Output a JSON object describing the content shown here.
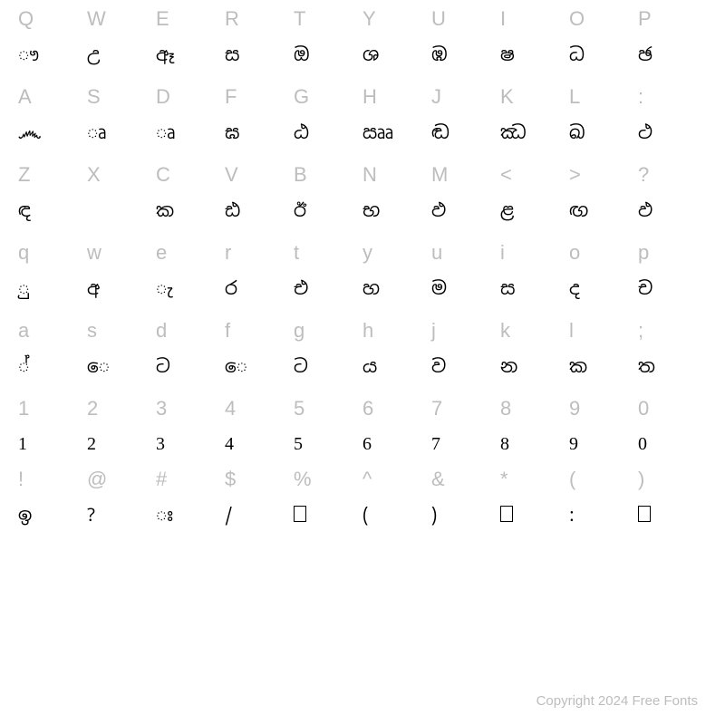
{
  "colors": {
    "key": "#bdbdbd",
    "glyph": "#000000",
    "background": "#ffffff"
  },
  "fonts": {
    "key_size": 22,
    "glyph_size": 20
  },
  "rows": [
    {
      "keys": [
        "Q",
        "W",
        "E",
        "R",
        "T",
        "Y",
        "U",
        "I",
        "O",
        "P"
      ],
      "glyphs": [
        "ෟ",
        "උ",
        "ඈ",
        "ස",
        "ඔ",
        "ශ",
        "ඹ",
        "ෂ",
        "ධ",
        "ඡ"
      ]
    },
    {
      "keys": [
        "A",
        "S",
        "D",
        "F",
        "G",
        "H",
        "J",
        "K",
        "L",
        ":"
      ],
      "glyphs": [
        "෴",
        "ෘ",
        "ෘ",
        "ඝ",
        "ඨ",
        "ඎ",
        "ඬ",
        "ඣ",
        "ඛ",
        "ථ"
      ]
    },
    {
      "keys": [
        "Z",
        "X",
        "C",
        "V",
        "B",
        "N",
        "M",
        "<",
        ">",
        "?"
      ],
      "glyphs": [
        "ඳ",
        "",
        "ක",
        "ඪ",
        "ඊ",
        "භ",
        "ඵ",
        "ළ",
        "ඟ",
        "ඵ"
      ]
    },
    {
      "keys": [
        "q",
        "w",
        "e",
        "r",
        "t",
        "y",
        "u",
        "i",
        "o",
        "p"
      ],
      "glyphs": [
        "ු",
        "අ",
        "ැ",
        "ර",
        "එ",
        "හ",
        "ම",
        "ස",
        "ද",
        "ච"
      ]
    },
    {
      "keys": [
        "a",
        "s",
        "d",
        "f",
        "g",
        "h",
        "j",
        "k",
        "l",
        ";"
      ],
      "glyphs": [
        "්",
        "ෙ",
        "ට",
        "ෙ",
        "ට",
        "ය",
        "ව",
        "න",
        "ක",
        "ත"
      ]
    },
    {
      "keys": [
        "1",
        "2",
        "3",
        "4",
        "5",
        "6",
        "7",
        "8",
        "9",
        "0"
      ],
      "glyphs": [
        "1",
        "2",
        "3",
        "4",
        "5",
        "6",
        "7",
        "8",
        "9",
        "0"
      ],
      "latin": true,
      "cls": "num-cell"
    },
    {
      "keys": [
        "!",
        "@",
        "#",
        "$",
        "%",
        "^",
        "&",
        "*",
        "(",
        ")"
      ],
      "glyphs": [
        "ඉ",
        "?",
        "ඃ",
        "/",
        "□",
        "(",
        ")",
        "□",
        ":",
        "□"
      ],
      "cls": "sym-cell"
    }
  ],
  "footer": "Copyright 2024 Free Fonts"
}
